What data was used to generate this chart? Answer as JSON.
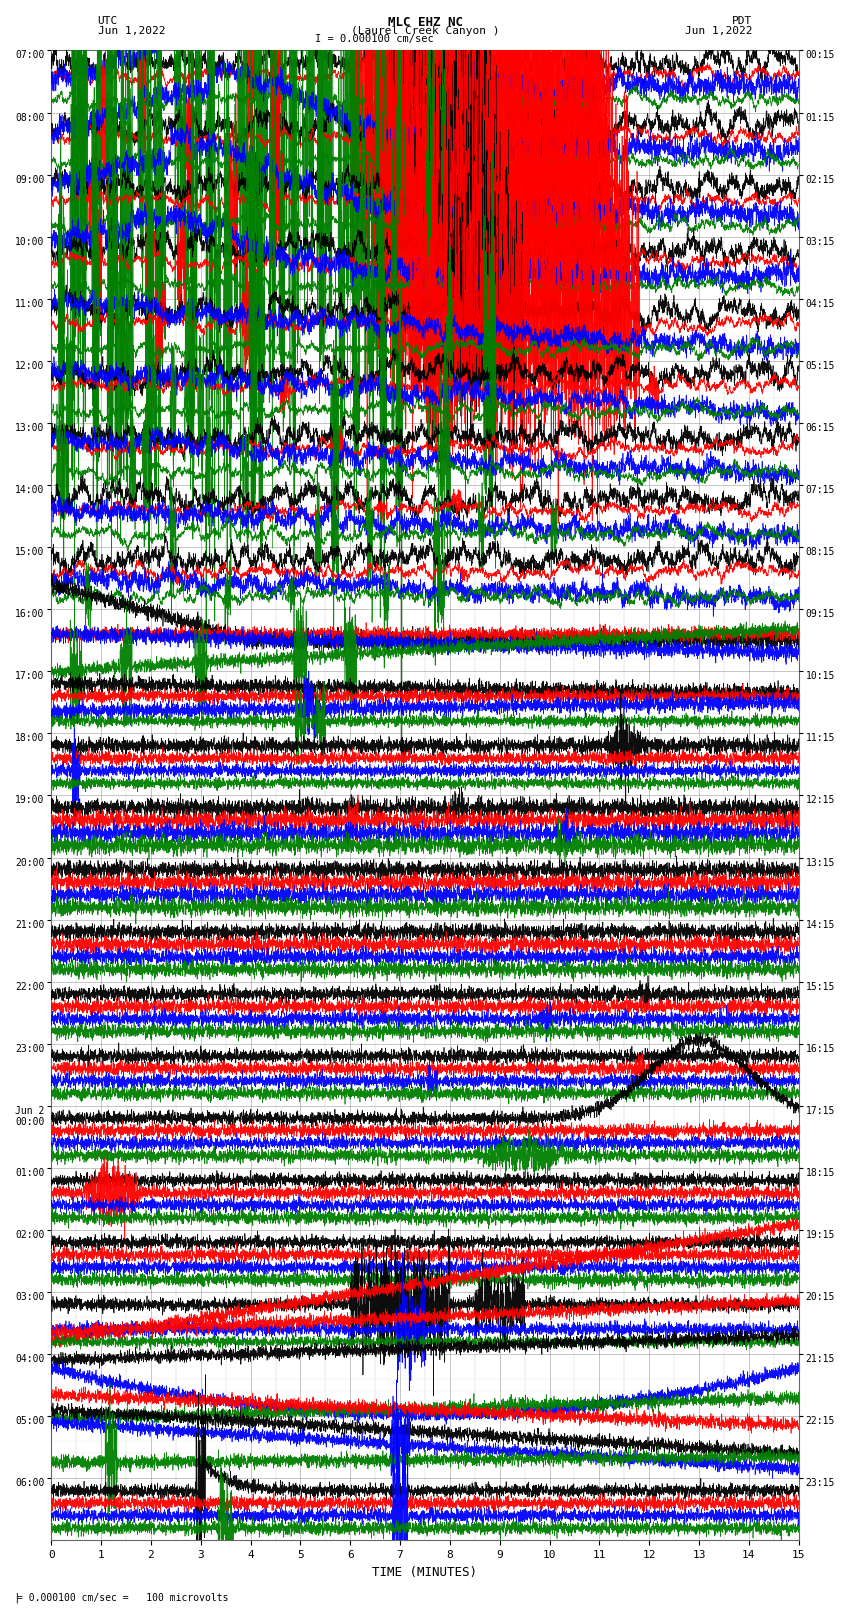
{
  "title_line1": "MLC EHZ NC",
  "title_line2": "(Laurel Creek Canyon )",
  "scale_label": "I = 0.000100 cm/sec",
  "left_header_line1": "UTC",
  "left_header_line2": "Jun 1,2022",
  "right_header_line1": "PDT",
  "right_header_line2": "Jun 1,2022",
  "bottom_label": "TIME (MINUTES)",
  "bottom_note": "= 0.000100 cm/sec =   100 microvolts",
  "utc_times": [
    "07:00",
    "08:00",
    "09:00",
    "10:00",
    "11:00",
    "12:00",
    "13:00",
    "14:00",
    "15:00",
    "16:00",
    "17:00",
    "18:00",
    "19:00",
    "20:00",
    "21:00",
    "22:00",
    "23:00",
    "Jun 2\n00:00",
    "01:00",
    "02:00",
    "03:00",
    "04:00",
    "05:00",
    "06:00"
  ],
  "pdt_times": [
    "00:15",
    "01:15",
    "02:15",
    "03:15",
    "04:15",
    "05:15",
    "06:15",
    "07:15",
    "08:15",
    "09:15",
    "10:15",
    "11:15",
    "12:15",
    "13:15",
    "14:15",
    "15:15",
    "16:15",
    "17:15",
    "18:15",
    "19:15",
    "20:15",
    "21:15",
    "22:15",
    "23:15"
  ],
  "n_rows": 24,
  "n_minutes": 15,
  "bg_color": "#ffffff",
  "grid_color": "#999999",
  "figsize": [
    8.5,
    16.13
  ],
  "dpi": 100
}
